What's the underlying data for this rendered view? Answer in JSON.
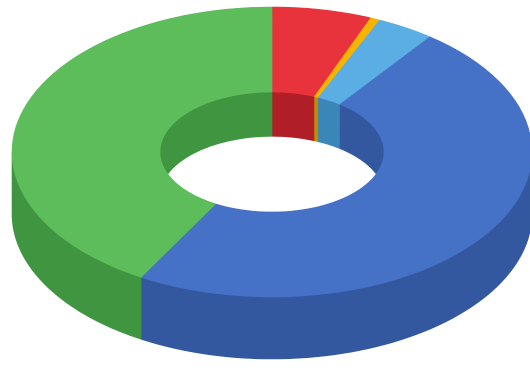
{
  "chart_data": {
    "type": "pie",
    "variant": "3d-donut",
    "title": "",
    "legend": "none",
    "data_labels": "none",
    "start_angle_deg": -90,
    "direction": "clockwise",
    "slices": [
      {
        "value": 6.2,
        "color": "#e8323c",
        "side_color": "#b01f28"
      },
      {
        "value": 0.6,
        "color": "#f5b400",
        "side_color": "#c08c00"
      },
      {
        "value": 3.6,
        "color": "#5aaee3",
        "side_color": "#3b86b8"
      },
      {
        "value": 48.0,
        "color": "#4571c7",
        "side_color": "#3358a0"
      },
      {
        "value": 41.6,
        "color": "#5cbd5a",
        "side_color": "#3f9540"
      }
    ]
  }
}
